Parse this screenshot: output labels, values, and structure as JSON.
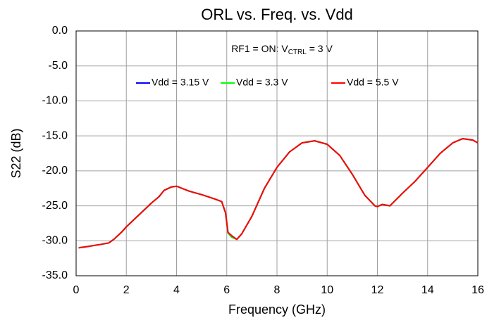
{
  "chart_data": {
    "type": "line",
    "title": "ORL vs. Freq. vs. Vdd",
    "annotation": [
      "RF1 = ON: V",
      "CTRL",
      " = 3 V"
    ],
    "xlabel": "Frequency (GHz)",
    "ylabel": "S22 (dB)",
    "x": [
      0.1,
      0.5,
      1.0,
      1.3,
      1.5,
      1.8,
      2.0,
      2.5,
      3.0,
      3.3,
      3.5,
      3.8,
      4.0,
      4.5,
      5.0,
      5.5,
      5.8,
      5.95,
      6.05,
      6.2,
      6.4,
      6.6,
      7.0,
      7.5,
      8.0,
      8.5,
      9.0,
      9.5,
      10.0,
      10.5,
      11.0,
      11.5,
      11.9,
      12.0,
      12.2,
      12.5,
      13.0,
      13.5,
      14.0,
      14.5,
      15.0,
      15.4,
      15.8,
      16.0
    ],
    "series": [
      {
        "name": "Vdd = 3.15 V",
        "color": "#0000ff",
        "values": [
          -31.0,
          -30.8,
          -30.5,
          -30.3,
          -29.8,
          -28.8,
          -28.0,
          -26.3,
          -24.6,
          -23.7,
          -22.8,
          -22.3,
          -22.2,
          -22.9,
          -23.4,
          -24.0,
          -24.4,
          -26.0,
          -28.8,
          -29.3,
          -29.8,
          -29.0,
          -26.5,
          -22.5,
          -19.5,
          -17.3,
          -16.0,
          -15.7,
          -16.2,
          -17.8,
          -20.5,
          -23.5,
          -25.0,
          -25.1,
          -24.8,
          -25.0,
          -23.2,
          -21.5,
          -19.5,
          -17.5,
          -16.0,
          -15.4,
          -15.6,
          -16.0
        ]
      },
      {
        "name": "Vdd = 3.3 V",
        "color": "#00ff00",
        "values": [
          -31.0,
          -30.8,
          -30.5,
          -30.3,
          -29.8,
          -28.8,
          -28.0,
          -26.3,
          -24.6,
          -23.7,
          -22.8,
          -22.3,
          -22.2,
          -22.9,
          -23.4,
          -24.0,
          -24.4,
          -26.0,
          -28.9,
          -29.5,
          -29.8,
          -29.0,
          -26.5,
          -22.5,
          -19.5,
          -17.3,
          -16.0,
          -15.7,
          -16.2,
          -17.8,
          -20.5,
          -23.5,
          -25.0,
          -25.1,
          -24.8,
          -25.0,
          -23.2,
          -21.5,
          -19.5,
          -17.5,
          -16.0,
          -15.4,
          -15.6,
          -16.0
        ]
      },
      {
        "name": "Vdd = 5.5 V",
        "color": "#ff0000",
        "values": [
          -31.0,
          -30.8,
          -30.5,
          -30.3,
          -29.8,
          -28.8,
          -28.0,
          -26.3,
          -24.6,
          -23.7,
          -22.8,
          -22.3,
          -22.2,
          -22.9,
          -23.4,
          -24.0,
          -24.4,
          -26.0,
          -28.8,
          -29.3,
          -29.8,
          -29.0,
          -26.5,
          -22.5,
          -19.5,
          -17.3,
          -16.0,
          -15.7,
          -16.2,
          -17.8,
          -20.5,
          -23.5,
          -25.0,
          -25.1,
          -24.8,
          -25.0,
          -23.2,
          -21.5,
          -19.5,
          -17.5,
          -16.0,
          -15.4,
          -15.6,
          -16.0
        ]
      }
    ],
    "xlim": [
      0,
      16
    ],
    "xticks": [
      0,
      2,
      4,
      6,
      8,
      10,
      12,
      14,
      16
    ],
    "ylim": [
      -35,
      0
    ],
    "yticks": [
      {
        "value": 0,
        "label": "0.0"
      },
      {
        "value": -5,
        "label": "-5.0"
      },
      {
        "value": -10,
        "label": "-10.0"
      },
      {
        "value": -15,
        "label": "-15.0"
      },
      {
        "value": -20,
        "label": "-20.0"
      },
      {
        "value": -25,
        "label": "-25.0"
      },
      {
        "value": -30,
        "label": "-30.0"
      },
      {
        "value": -35,
        "label": "-35.0"
      }
    ],
    "grid": true,
    "legend": "top"
  }
}
